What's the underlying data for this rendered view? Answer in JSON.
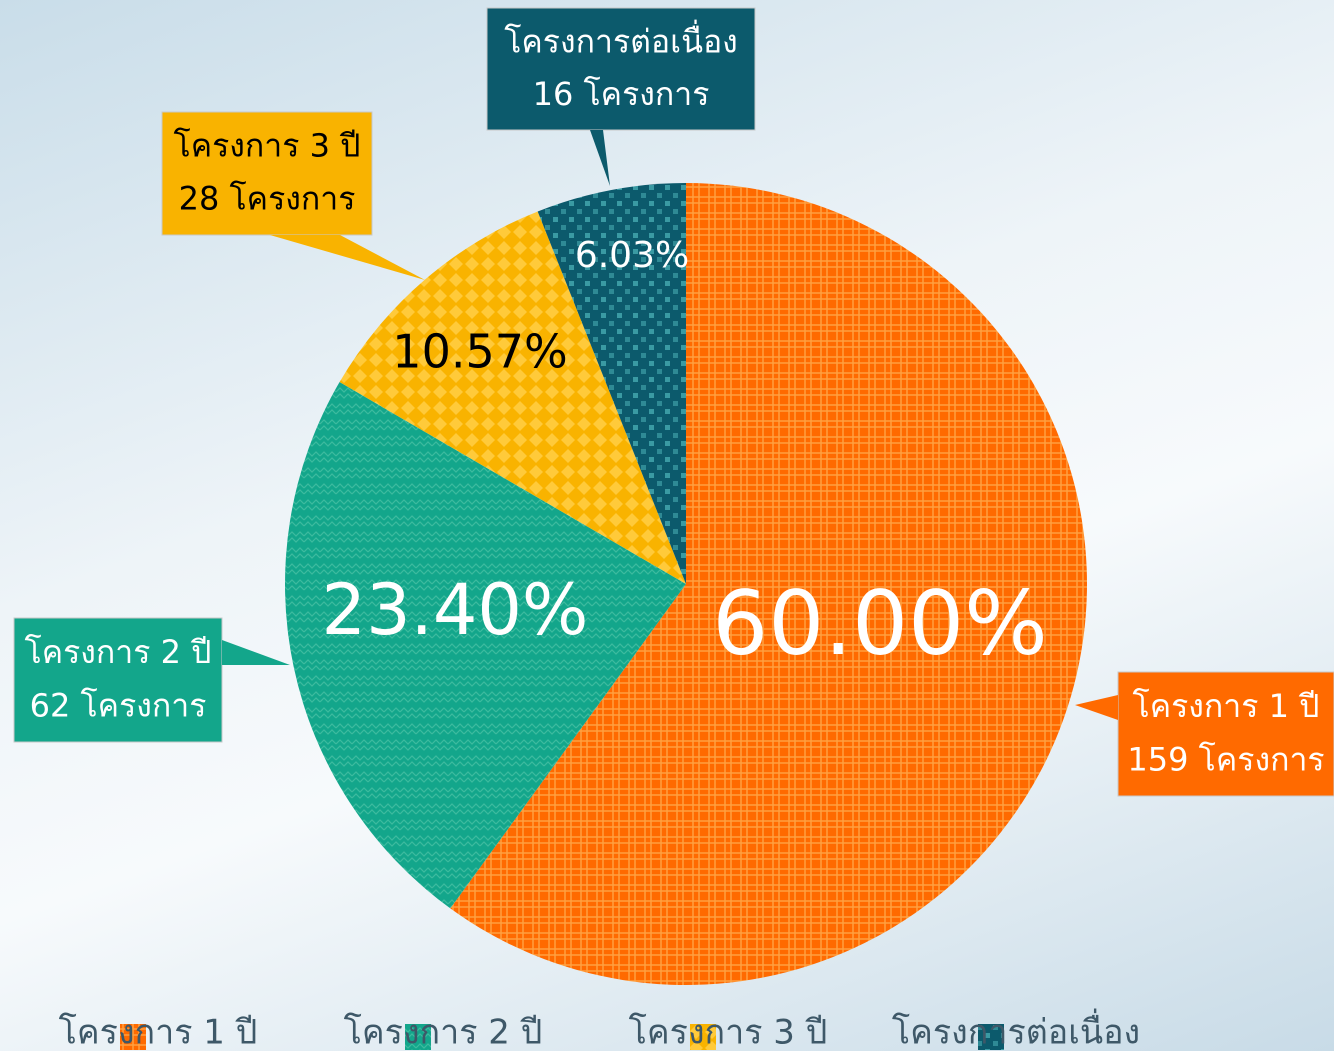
{
  "chart_data": {
    "type": "pie",
    "categories": [
      "โครงการ 1 ปี",
      "โครงการ 2 ปี",
      "โครงการ 3 ปี",
      "โครงการต่อเนื่อง"
    ],
    "values": [
      60.0,
      23.4,
      10.57,
      6.03
    ],
    "value_labels": [
      "60.00%",
      "23.40%",
      "10.57%",
      "6.03%"
    ],
    "annotations": [
      "159 โครงการ",
      "62 โครงการ",
      "28 โครงการ",
      "16 โครงการ"
    ],
    "colors": [
      "#ff6a00",
      "#13a68b",
      "#f9b300",
      "#0c5a6c"
    ],
    "legend": "bottom"
  }
}
